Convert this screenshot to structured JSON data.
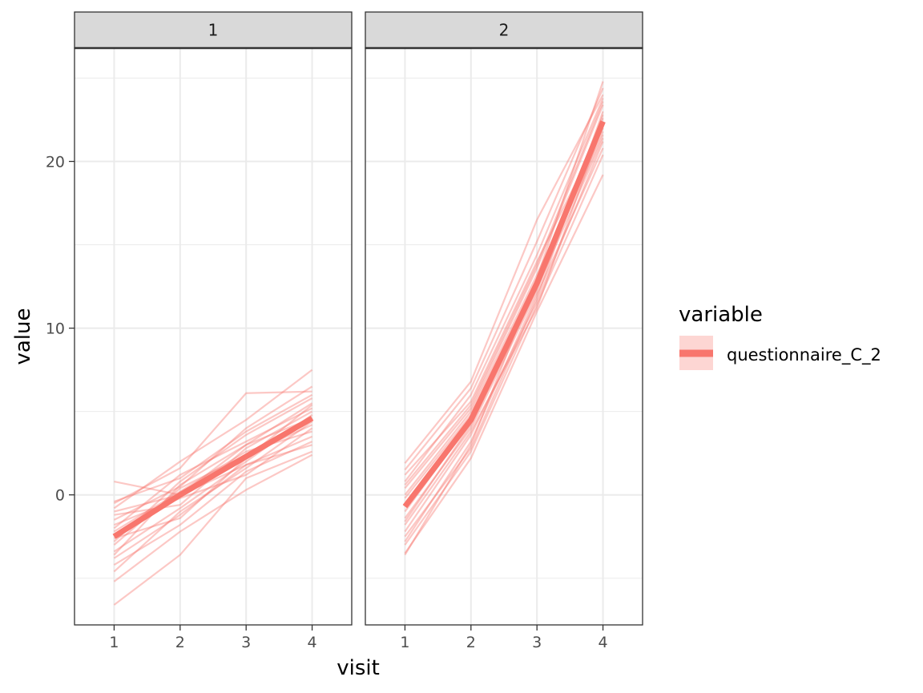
{
  "chart_data": {
    "type": "line",
    "xlabel": "visit",
    "ylabel": "value",
    "x": [
      1,
      2,
      3,
      4
    ],
    "x_ticks": [
      "1",
      "2",
      "3",
      "4"
    ],
    "y_ticks": [
      "0",
      "10",
      "20"
    ],
    "ylim": [
      -7.8,
      26.8
    ],
    "xlim": [
      0.4,
      4.6
    ],
    "grid": true,
    "legend": {
      "title": "variable",
      "position": "right",
      "entries": [
        {
          "label": "questionnaire_C_2",
          "color": "#F8766D"
        }
      ]
    },
    "series_color": "#F8766D",
    "panels": [
      {
        "label": "1",
        "mean": [
          -2.5,
          0.0,
          2.3,
          4.6
        ],
        "individual_lines": [
          [
            0.8,
            0.0,
            3.0,
            5.5
          ],
          [
            -0.5,
            1.6,
            6.1,
            6.2
          ],
          [
            -6.6,
            -3.6,
            1.0,
            2.6
          ],
          [
            -5.2,
            -2.2,
            0.3,
            2.4
          ],
          [
            -0.8,
            2.0,
            4.5,
            7.5
          ],
          [
            -1.5,
            0.5,
            4.0,
            6.5
          ],
          [
            -3.8,
            -1.2,
            1.8,
            3.5
          ],
          [
            -2.0,
            1.2,
            3.2,
            5.2
          ],
          [
            -3.0,
            0.4,
            2.4,
            4.2
          ],
          [
            -1.2,
            -0.6,
            2.8,
            5.0
          ],
          [
            -4.2,
            -1.8,
            1.4,
            3.2
          ],
          [
            -2.8,
            0.8,
            3.6,
            5.8
          ],
          [
            -1.8,
            -0.2,
            1.2,
            4.0
          ],
          [
            -3.4,
            -0.8,
            2.0,
            4.8
          ],
          [
            -2.2,
            0.2,
            2.6,
            3.8
          ],
          [
            -4.6,
            -1.0,
            1.6,
            4.4
          ],
          [
            -0.4,
            1.0,
            3.8,
            6.0
          ],
          [
            -2.6,
            -1.4,
            2.2,
            5.4
          ],
          [
            -3.6,
            0.6,
            3.0,
            4.6
          ],
          [
            -1.0,
            0.0,
            1.8,
            3.0
          ]
        ]
      },
      {
        "label": "2",
        "mean": [
          -0.7,
          4.5,
          12.7,
          22.4
        ],
        "individual_lines": [
          [
            1.9,
            6.8,
            16.5,
            24.0
          ],
          [
            -3.5,
            2.2,
            11.0,
            19.2
          ],
          [
            -3.6,
            3.0,
            13.0,
            24.8
          ],
          [
            1.2,
            5.6,
            14.0,
            22.0
          ],
          [
            -2.2,
            3.6,
            11.6,
            21.2
          ],
          [
            0.4,
            5.2,
            13.6,
            23.4
          ],
          [
            -1.4,
            4.0,
            12.2,
            22.8
          ],
          [
            -2.8,
            3.2,
            12.0,
            20.8
          ],
          [
            0.8,
            6.0,
            14.4,
            23.8
          ],
          [
            -0.2,
            4.8,
            12.8,
            21.6
          ],
          [
            -1.8,
            3.8,
            11.2,
            22.2
          ],
          [
            1.5,
            6.4,
            15.2,
            24.4
          ],
          [
            -2.5,
            2.8,
            11.8,
            23.0
          ],
          [
            0.0,
            5.0,
            13.2,
            21.8
          ],
          [
            -1.0,
            4.4,
            12.6,
            22.6
          ],
          [
            -3.0,
            2.6,
            11.4,
            20.4
          ],
          [
            0.6,
            5.4,
            13.8,
            23.6
          ],
          [
            -1.6,
            4.2,
            12.4,
            21.4
          ]
        ]
      }
    ]
  }
}
